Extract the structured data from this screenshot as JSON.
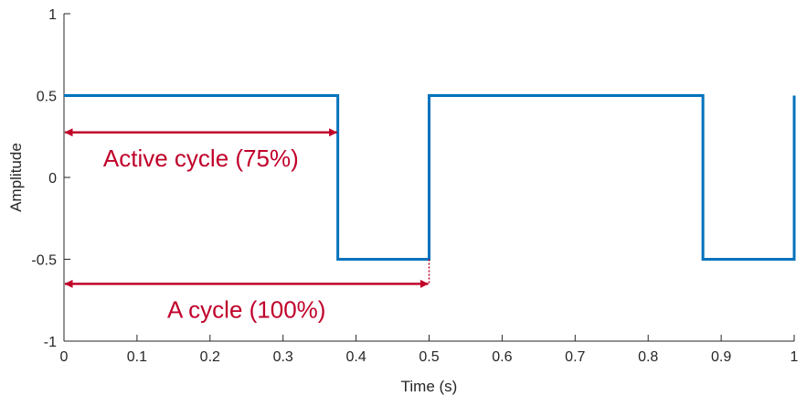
{
  "chart_data": {
    "type": "line",
    "title": "",
    "xlabel": "Time (s)",
    "ylabel": "Amplitude",
    "xlim": [
      0,
      1
    ],
    "ylim": [
      -1,
      1
    ],
    "xticks": [
      0,
      0.1,
      0.2,
      0.3,
      0.4,
      0.5,
      0.6,
      0.7,
      0.8,
      0.9,
      1
    ],
    "xtick_labels": [
      "0",
      "0.1",
      "0.2",
      "0.3",
      "0.4",
      "0.5",
      "0.6",
      "0.7",
      "0.8",
      "0.9",
      "1"
    ],
    "yticks": [
      -1,
      -0.5,
      0,
      0.5,
      1
    ],
    "ytick_labels": [
      "-1",
      "-0.5",
      "0",
      "0.5",
      "1"
    ],
    "grid": false,
    "series": [
      {
        "color": "#0072BD",
        "x": [
          0,
          0.375,
          0.375,
          0.5,
          0.5,
          0.875,
          0.875,
          1,
          1
        ],
        "y": [
          0.5,
          0.5,
          -0.5,
          -0.5,
          0.5,
          0.5,
          -0.5,
          -0.5,
          0.5
        ]
      }
    ],
    "annotations": [
      {
        "label": "Active cycle (75%)",
        "x_start": 0,
        "x_end": 0.375,
        "y": 0.275,
        "color": "#C0002A"
      },
      {
        "label": "A cycle (100%)",
        "x_start": 0,
        "x_end": 0.5,
        "y": -0.65,
        "color": "#C0002A"
      }
    ],
    "guide_line": {
      "x": 0.5,
      "y_from": -0.5,
      "y_to": -0.65,
      "style": "dotted",
      "color": "#C0002A"
    }
  }
}
